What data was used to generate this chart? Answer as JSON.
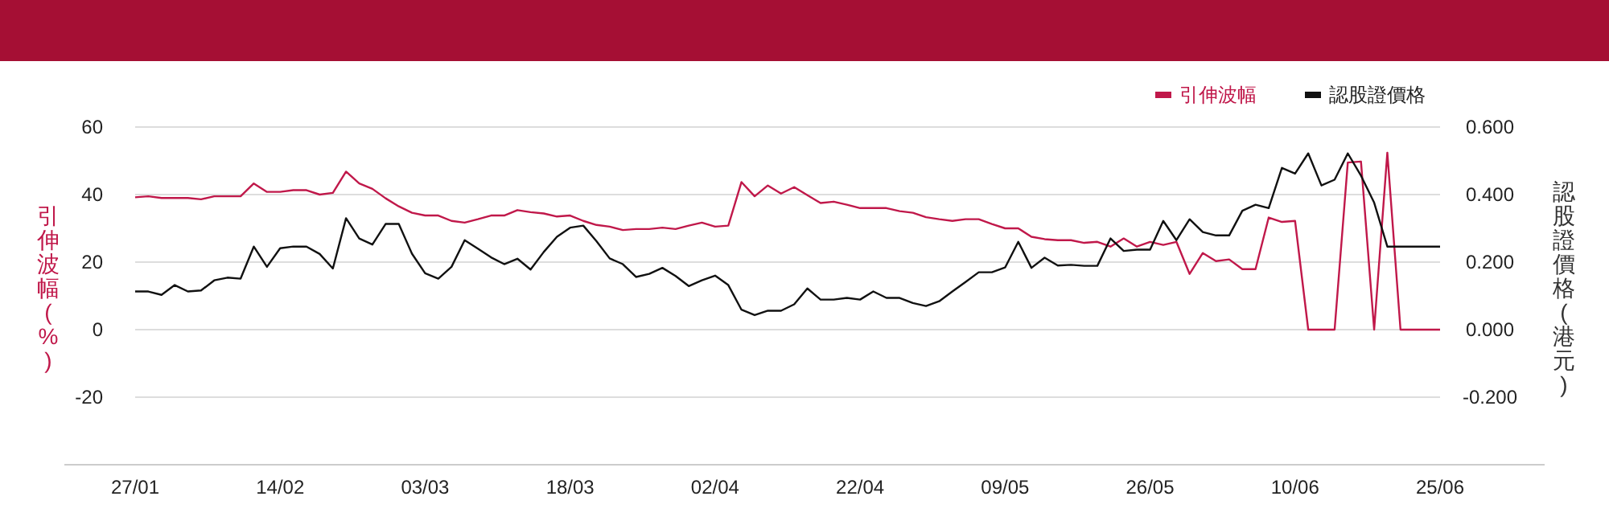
{
  "chart_data": {
    "type": "line",
    "ylabel": "引伸波幅(%)",
    "y2label": "認股證價格(港元)",
    "categories": [
      "27/01",
      null,
      null,
      null,
      null,
      null,
      null,
      null,
      null,
      null,
      null,
      "14/02",
      null,
      null,
      null,
      null,
      null,
      null,
      null,
      null,
      null,
      null,
      "03/03",
      null,
      null,
      null,
      null,
      null,
      null,
      null,
      null,
      null,
      null,
      "18/03",
      null,
      null,
      null,
      null,
      null,
      null,
      null,
      null,
      null,
      null,
      "02/04",
      null,
      null,
      null,
      null,
      null,
      null,
      null,
      null,
      null,
      null,
      "22/04",
      null,
      null,
      null,
      null,
      null,
      null,
      null,
      null,
      null,
      null,
      "09/05",
      null,
      null,
      null,
      null,
      null,
      null,
      null,
      null,
      null,
      null,
      "26/05",
      null,
      null,
      null,
      null,
      null,
      null,
      null,
      null,
      null,
      null,
      "10/06",
      null,
      null,
      null,
      null,
      null,
      null,
      null,
      null,
      null,
      null,
      "25/06"
    ],
    "series": [
      {
        "name": "引伸波幅",
        "color": "#c0184a",
        "values": [
          39.2,
          39.5,
          39.0,
          39.0,
          39.0,
          38.6,
          39.5,
          39.5,
          39.5,
          43.3,
          40.8,
          40.8,
          41.3,
          41.3,
          40.0,
          40.5,
          46.8,
          43.3,
          41.7,
          38.9,
          36.5,
          34.6,
          33.8,
          33.8,
          32.2,
          31.7,
          32.7,
          33.8,
          33.8,
          35.4,
          34.8,
          34.4,
          33.5,
          33.8,
          32.2,
          31.0,
          30.5,
          29.5,
          29.8,
          29.8,
          30.2,
          29.8,
          30.8,
          31.7,
          30.5,
          30.8,
          43.7,
          39.5,
          42.7,
          40.3,
          42.2,
          39.8,
          37.5,
          37.9,
          37.0,
          36.0,
          36.0,
          36.0,
          35.1,
          34.6,
          33.3,
          32.7,
          32.2,
          32.7,
          32.7,
          31.3,
          30.0,
          30.0,
          27.5,
          26.8,
          26.5,
          26.5,
          25.7,
          26.0,
          24.6,
          27.0,
          24.6,
          26.0,
          25.1,
          26.0,
          16.5,
          22.7,
          20.3,
          20.8,
          17.9,
          17.9,
          33.2,
          31.9,
          32.2,
          0,
          0,
          0,
          49.5,
          49.8,
          0,
          52.4,
          0,
          0,
          0,
          0
        ]
      },
      {
        "name": "認股證價格",
        "color": "#111111",
        "axis": "y2",
        "values": [
          0.113,
          0.113,
          0.103,
          0.132,
          0.113,
          0.116,
          0.146,
          0.154,
          0.151,
          0.246,
          0.186,
          0.241,
          0.246,
          0.246,
          0.224,
          0.181,
          0.33,
          0.27,
          0.252,
          0.313,
          0.313,
          0.225,
          0.167,
          0.151,
          0.186,
          0.265,
          0.24,
          0.214,
          0.194,
          0.21,
          0.178,
          0.23,
          0.275,
          0.302,
          0.308,
          0.262,
          0.211,
          0.194,
          0.156,
          0.165,
          0.183,
          0.159,
          0.129,
          0.146,
          0.16,
          0.132,
          0.059,
          0.043,
          0.056,
          0.056,
          0.075,
          0.122,
          0.089,
          0.089,
          0.094,
          0.089,
          0.113,
          0.094,
          0.094,
          0.079,
          0.07,
          0.084,
          0.113,
          0.141,
          0.17,
          0.17,
          0.184,
          0.26,
          0.183,
          0.213,
          0.19,
          0.192,
          0.189,
          0.189,
          0.27,
          0.233,
          0.237,
          0.237,
          0.322,
          0.265,
          0.327,
          0.289,
          0.279,
          0.279,
          0.352,
          0.37,
          0.36,
          0.479,
          0.462,
          0.522,
          0.427,
          0.444,
          0.522,
          0.456,
          0.376,
          0.246,
          0.246,
          0.246,
          0.246,
          0.246
        ]
      }
    ],
    "ylim": [
      -40,
      60
    ],
    "yticks": [
      -20,
      0,
      20,
      40,
      60
    ],
    "y2lim": [
      -0.4,
      0.6
    ],
    "y2ticks": [
      {
        "value": -0.2,
        "label": "-0.200"
      },
      {
        "value": 0,
        "label": "0.000"
      },
      {
        "value": 0.2,
        "label": "0.200"
      },
      {
        "value": 0.4,
        "label": "0.400"
      },
      {
        "value": 0.6,
        "label": "0.600"
      }
    ],
    "grid": "y",
    "legend": "top right",
    "marker": "none",
    "line_style": "solid"
  }
}
